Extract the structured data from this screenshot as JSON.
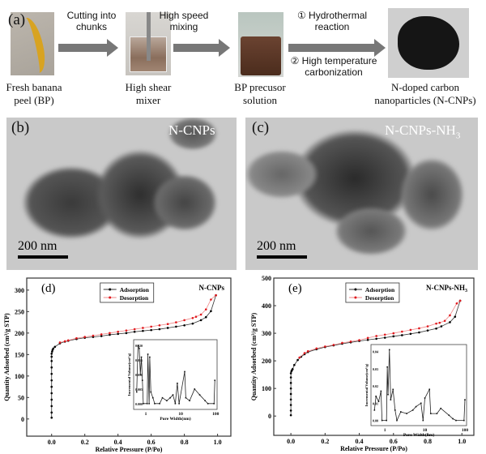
{
  "panel_a": {
    "label": "(a)",
    "step1_caption": [
      "Fresh banana",
      "peel (BP)"
    ],
    "arrow1_text": [
      "Cutting into",
      "chunks"
    ],
    "step2_caption": [
      "High  shear",
      "mixer"
    ],
    "arrow2_text": [
      "High speed",
      "mixing"
    ],
    "step3_caption": [
      "BP precusor",
      "solution"
    ],
    "arrow3_text": [
      "①  Hydrothermal",
      "reaction",
      "②  High temperature",
      "carbonization"
    ],
    "step4_caption": [
      "N-doped carbon",
      "nanoparticles (N-CNPs)"
    ]
  },
  "panel_b": {
    "label": "(b)",
    "sample": "N-CNPs",
    "scale": "200 nm"
  },
  "panel_c": {
    "label": "(c)",
    "sample": "N-CNPs-NH",
    "sample_sub": "3",
    "scale": "200 nm"
  },
  "chart_data": [
    {
      "type": "line",
      "panel": "(d)",
      "annotation": "N-CNPs",
      "xlabel": "Relative Pressure (P/Po)",
      "ylabel": "Quantity Adsorbed (cm³/g STP)",
      "xlim": [
        -0.15,
        1.08
      ],
      "ylim": [
        -40,
        328
      ],
      "xticks": [
        0.0,
        0.2,
        0.4,
        0.6,
        0.8,
        1.0
      ],
      "yticks": [
        0,
        50,
        100,
        150,
        200,
        250,
        300
      ],
      "legend": "top-center",
      "series": [
        {
          "name": "Adsorption",
          "color": "#000000",
          "x": [
            0,
            0,
            0,
            0,
            0,
            0,
            0,
            0,
            0,
            0,
            0,
            0,
            0.003,
            0.006,
            0.01,
            0.02,
            0.05,
            0.08,
            0.1,
            0.15,
            0.2,
            0.25,
            0.3,
            0.35,
            0.4,
            0.45,
            0.5,
            0.55,
            0.6,
            0.65,
            0.7,
            0.75,
            0.8,
            0.85,
            0.9,
            0.93,
            0.96,
            0.99
          ],
          "y": [
            3,
            15,
            30,
            45,
            60,
            75,
            90,
            105,
            120,
            135,
            145,
            152,
            157,
            161,
            164,
            168,
            176,
            180,
            182,
            186,
            189,
            191,
            193,
            196,
            198,
            200,
            203,
            205,
            207,
            209,
            212,
            215,
            218,
            222,
            230,
            237,
            251,
            288
          ]
        },
        {
          "name": "Desorption",
          "color": "#e0191e",
          "x": [
            0.99,
            0.96,
            0.93,
            0.9,
            0.87,
            0.85,
            0.8,
            0.75,
            0.7,
            0.65,
            0.6,
            0.55,
            0.5,
            0.45,
            0.4,
            0.35,
            0.3,
            0.25,
            0.2,
            0.15,
            0.1,
            0.08,
            0.05
          ],
          "y": [
            288,
            278,
            255,
            243,
            238,
            235,
            230,
            225,
            221,
            218,
            215,
            212,
            209,
            206,
            203,
            200,
            197,
            194,
            191,
            188,
            183,
            181,
            178
          ]
        }
      ],
      "inset": {
        "xlabel": "Pore Width(nm)",
        "ylabel": "Incremental Volume(cm³/g)",
        "xscale": "log",
        "xlim": [
          0.45,
          110
        ],
        "ylim": [
          -0.002,
          0.022
        ],
        "xticks": [
          1,
          10,
          100
        ],
        "yticks": [
          "0.000",
          "0.005",
          "0.010",
          "0.015",
          "0.020"
        ],
        "x": [
          0.55,
          0.6,
          0.65,
          0.7,
          0.75,
          0.8,
          0.85,
          1.1,
          1.15,
          1.25,
          1.3,
          1.4,
          1.6,
          1.8,
          2.5,
          3,
          4,
          5,
          6,
          7,
          8,
          9,
          13,
          14,
          18,
          25,
          35,
          50,
          60,
          90,
          95
        ],
        "y": [
          0.004,
          0.02,
          0.019,
          0.01,
          0.016,
          0.008,
          0.0,
          0.0,
          0.017,
          0.0,
          0.016,
          0.004,
          0.002,
          0.0,
          0.0,
          0.002,
          0.001,
          0.002,
          0.003,
          0.0,
          0.007,
          0.0,
          0.011,
          0.002,
          0.001,
          0.005,
          0.003,
          0.001,
          0.0,
          0.0,
          0.008
        ]
      }
    },
    {
      "type": "line",
      "panel": "(e)",
      "annotation": "N-CNPs-NH",
      "annotation_sub": "3",
      "xlabel": "Relative Pressure (P/Po)",
      "ylabel": "Quantity Adsorbed (cm³/g STP)",
      "xlim": [
        -0.1,
        1.07
      ],
      "ylim": [
        -70,
        500
      ],
      "xticks": [
        0.0,
        0.2,
        0.4,
        0.6,
        0.8,
        1.0
      ],
      "yticks": [
        0,
        100,
        200,
        300,
        400,
        500
      ],
      "legend": "top-center",
      "series": [
        {
          "name": "Adsorption",
          "color": "#000000",
          "x": [
            0,
            0,
            0,
            0,
            0,
            0,
            0,
            0,
            0,
            0.003,
            0.006,
            0.01,
            0.02,
            0.04,
            0.06,
            0.08,
            0.1,
            0.15,
            0.2,
            0.25,
            0.3,
            0.35,
            0.4,
            0.45,
            0.5,
            0.55,
            0.6,
            0.65,
            0.7,
            0.75,
            0.8,
            0.85,
            0.88,
            0.93,
            0.96,
            0.99
          ],
          "y": [
            3,
            20,
            40,
            60,
            80,
            100,
            120,
            140,
            155,
            162,
            166,
            170,
            185,
            203,
            215,
            224,
            232,
            242,
            250,
            256,
            262,
            267,
            272,
            276,
            280,
            284,
            289,
            293,
            298,
            303,
            310,
            317,
            325,
            340,
            360,
            418
          ]
        },
        {
          "name": "Desorption",
          "color": "#e0191e",
          "x": [
            0.99,
            0.97,
            0.93,
            0.9,
            0.87,
            0.85,
            0.8,
            0.75,
            0.7,
            0.65,
            0.6,
            0.55,
            0.5,
            0.45,
            0.4,
            0.35,
            0.3,
            0.25,
            0.2,
            0.15,
            0.1,
            0.08,
            0.05
          ],
          "y": [
            418,
            408,
            365,
            345,
            338,
            335,
            325,
            318,
            312,
            306,
            300,
            295,
            290,
            283,
            275,
            270,
            265,
            258,
            252,
            245,
            235,
            228,
            212
          ]
        }
      ],
      "inset": {
        "xlabel": "Pore Width(nm)",
        "ylabel": "Incremental Volume(cm³/g)",
        "xscale": "log",
        "xlim": [
          0.45,
          110
        ],
        "ylim": [
          -0.003,
          0.044
        ],
        "xticks": [
          1,
          10,
          100
        ],
        "yticks": [
          "0.00",
          "0.01",
          "0.02",
          "0.03",
          "0.04"
        ],
        "x": [
          0.55,
          0.6,
          0.7,
          0.8,
          0.85,
          1.1,
          1.15,
          1.2,
          1.3,
          1.4,
          1.6,
          1.8,
          2.0,
          2.5,
          3.5,
          5,
          6,
          8,
          9,
          10,
          13,
          14,
          20,
          25,
          40,
          50,
          60,
          95,
          100
        ],
        "y": [
          0.006,
          0.014,
          0.011,
          0.017,
          0.0,
          0.0,
          0.031,
          0.015,
          0.041,
          0.012,
          0.018,
          0.006,
          0.0,
          0.005,
          0.004,
          0.006,
          0.008,
          0.01,
          0.0,
          0.013,
          0.018,
          0.004,
          0.004,
          0.007,
          0.003,
          0.001,
          0.0,
          0.0,
          0.012
        ]
      }
    }
  ]
}
